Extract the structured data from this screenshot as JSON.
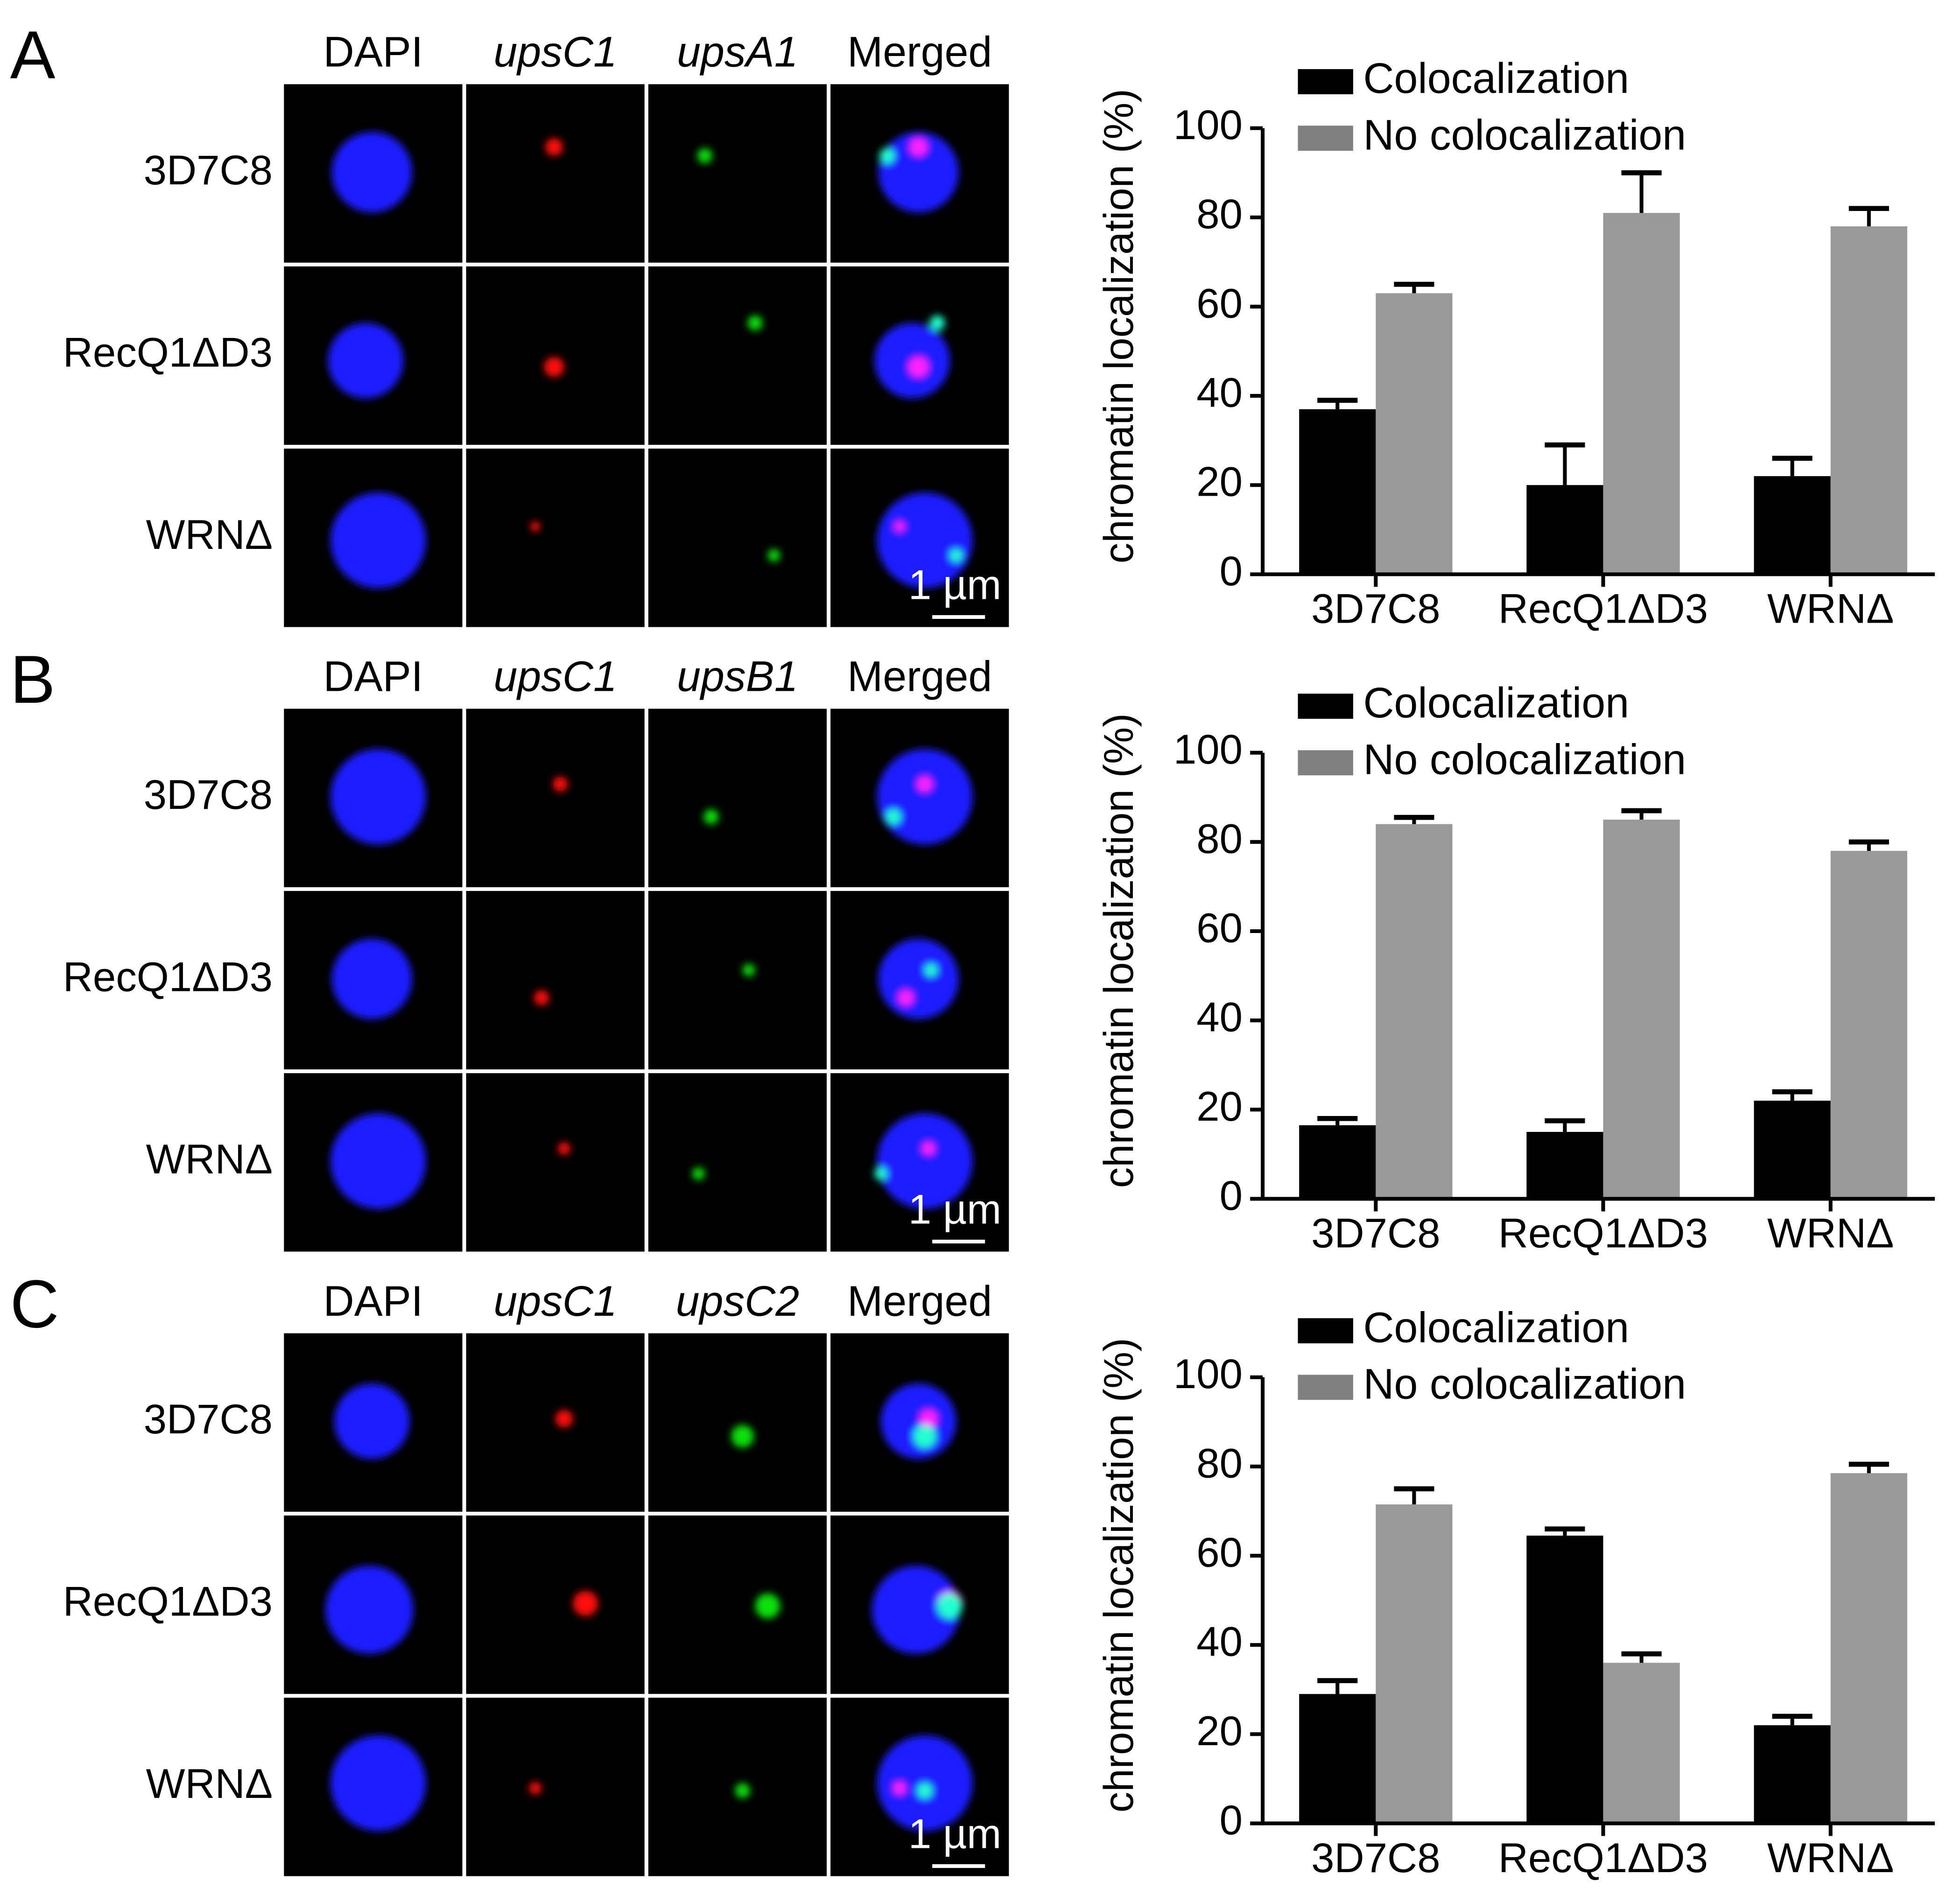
{
  "panels": [
    {
      "label": "A",
      "columns": [
        "DAPI",
        "upsC1",
        "upsA1",
        "Merged"
      ],
      "rows": [
        "3D7C8",
        "RecQ1ΔD3",
        "WRNΔ"
      ],
      "scale_bar": "1 µm"
    },
    {
      "label": "B",
      "columns": [
        "DAPI",
        "upsC1",
        "upsB1",
        "Merged"
      ],
      "rows": [
        "3D7C8",
        "RecQ1ΔD3",
        "WRNΔ"
      ],
      "scale_bar": "1 µm"
    },
    {
      "label": "C",
      "columns": [
        "DAPI",
        "upsC1",
        "upsC2",
        "Merged"
      ],
      "rows": [
        "3D7C8",
        "RecQ1ΔD3",
        "WRNΔ"
      ],
      "scale_bar": "1 µm"
    }
  ],
  "chart_data": [
    {
      "type": "bar",
      "ylabel": "chromatin localization (%)",
      "categories": [
        "3D7C8",
        "RecQ1ΔD3",
        "WRNΔ"
      ],
      "series": [
        {
          "name": "Colocalization",
          "color": "#000000",
          "values": [
            37,
            20,
            22
          ],
          "errors": [
            2,
            9,
            4
          ]
        },
        {
          "name": "No colocalization",
          "color": "#999999",
          "values": [
            63,
            81,
            78
          ],
          "errors": [
            2,
            9,
            4
          ]
        }
      ],
      "ylim": [
        0,
        100
      ],
      "yticks": [
        0,
        20,
        40,
        60,
        80,
        100
      ],
      "legend": "upper left"
    },
    {
      "type": "bar",
      "ylabel": "chromatin localization (%)",
      "categories": [
        "3D7C8",
        "RecQ1ΔD3",
        "WRNΔ"
      ],
      "series": [
        {
          "name": "Colocalization",
          "color": "#000000",
          "values": [
            16.5,
            15,
            22
          ],
          "errors": [
            1.5,
            2.5,
            2
          ]
        },
        {
          "name": "No colocalization",
          "color": "#999999",
          "values": [
            84,
            85,
            78
          ],
          "errors": [
            1.5,
            2,
            2
          ]
        }
      ],
      "ylim": [
        0,
        100
      ],
      "yticks": [
        0,
        20,
        40,
        60,
        80,
        100
      ],
      "legend": "upper left"
    },
    {
      "type": "bar",
      "ylabel": "chromatin localization (%)",
      "categories": [
        "3D7C8",
        "RecQ1ΔD3",
        "WRNΔ"
      ],
      "series": [
        {
          "name": "Colocalization",
          "color": "#000000",
          "values": [
            29,
            64.5,
            22
          ],
          "errors": [
            3,
            1.5,
            2
          ]
        },
        {
          "name": "No colocalization",
          "color": "#999999",
          "values": [
            71.5,
            36,
            78.5
          ],
          "errors": [
            3.5,
            2,
            2
          ]
        }
      ],
      "ylim": [
        0,
        100
      ],
      "yticks": [
        0,
        20,
        40,
        60,
        80,
        100
      ],
      "legend": "upper left"
    }
  ]
}
